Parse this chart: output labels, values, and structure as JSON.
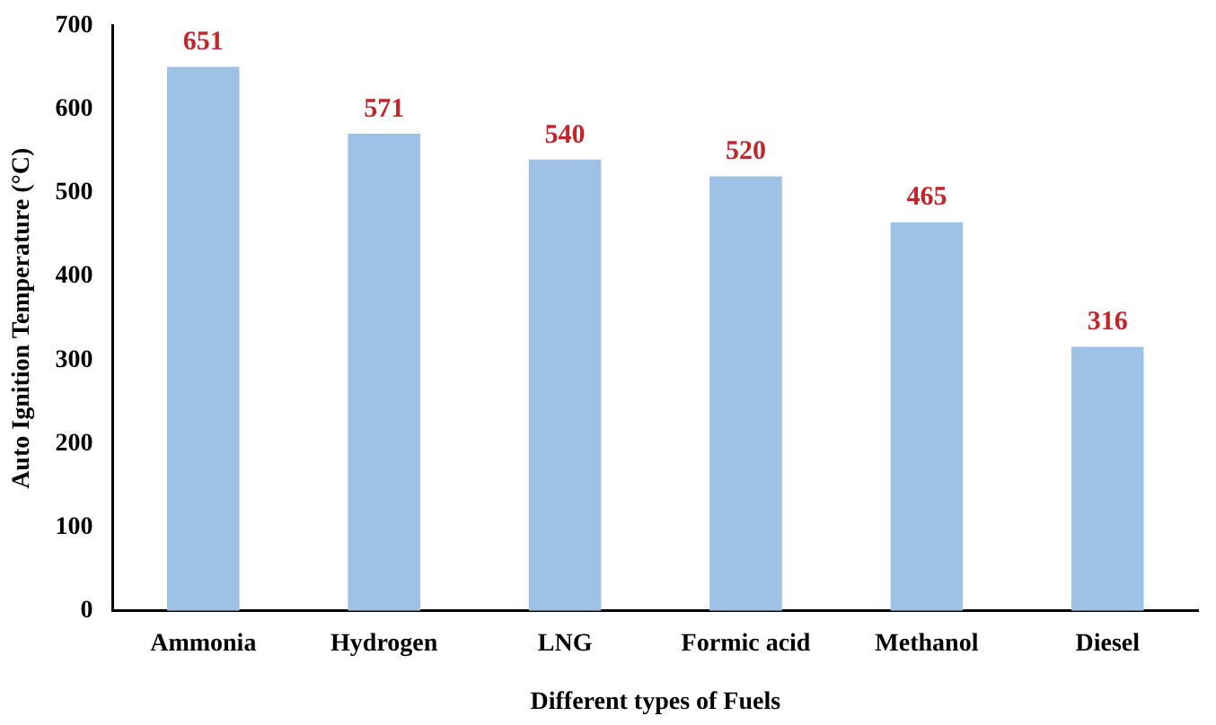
{
  "chart_data": {
    "type": "bar",
    "xlabel": "Different types of Fuels",
    "ylabel": "Auto Ignition Temperature (°C)",
    "categories": [
      "Ammonia",
      "Hydrogen",
      "LNG",
      "Formic acid",
      "Methanol",
      "Diesel"
    ],
    "values": [
      651,
      571,
      540,
      520,
      465,
      316
    ],
    "color": "#9ec2e6",
    "ylim": [
      0,
      700
    ],
    "yticks": [
      0,
      100,
      200,
      300,
      400,
      500,
      600,
      700
    ],
    "grid": false,
    "legend": false,
    "data_labels": true
  }
}
